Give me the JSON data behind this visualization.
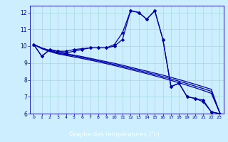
{
  "background_color": "#cceeff",
  "line_color": "#0000aa",
  "hours": [
    0,
    1,
    2,
    3,
    4,
    5,
    6,
    7,
    8,
    9,
    10,
    11,
    12,
    13,
    14,
    15,
    16,
    17,
    18,
    19,
    20,
    21,
    22,
    23
  ],
  "temp_main": [
    10.1,
    9.4,
    9.8,
    9.7,
    9.6,
    9.7,
    9.8,
    9.9,
    9.9,
    9.9,
    10.1,
    10.8,
    12.1,
    12.0,
    11.6,
    12.1,
    10.4,
    7.6,
    7.8,
    7.0,
    6.9,
    6.8,
    6.1,
    6.0
  ],
  "temp_line2": [
    10.1,
    9.4,
    9.8,
    9.7,
    9.7,
    9.8,
    9.85,
    9.9,
    9.9,
    9.9,
    10.0,
    10.4,
    12.1,
    12.0,
    11.6,
    12.1,
    10.4,
    7.6,
    7.8,
    7.0,
    6.9,
    6.7,
    6.1,
    6.0
  ],
  "trend_line1": [
    10.1,
    9.9,
    9.75,
    9.62,
    9.55,
    9.47,
    9.38,
    9.28,
    9.18,
    9.08,
    8.98,
    8.87,
    8.75,
    8.63,
    8.52,
    8.4,
    8.28,
    8.15,
    8.02,
    7.88,
    7.74,
    7.59,
    7.44,
    6.1
  ],
  "trend_line2": [
    10.1,
    9.88,
    9.72,
    9.58,
    9.5,
    9.42,
    9.33,
    9.23,
    9.13,
    9.02,
    8.91,
    8.8,
    8.68,
    8.56,
    8.44,
    8.32,
    8.19,
    8.06,
    7.92,
    7.78,
    7.63,
    7.48,
    7.32,
    6.1
  ],
  "trend_line3": [
    10.1,
    9.85,
    9.68,
    9.54,
    9.45,
    9.36,
    9.27,
    9.17,
    9.07,
    8.96,
    8.85,
    8.73,
    8.61,
    8.49,
    8.37,
    8.24,
    8.11,
    7.97,
    7.83,
    7.68,
    7.53,
    7.37,
    7.2,
    6.1
  ],
  "ylim": [
    6,
    12.4
  ],
  "xlim_min": -0.5,
  "xlim_max": 23.5,
  "yticks": [
    6,
    7,
    8,
    9,
    10,
    11,
    12
  ],
  "xticks": [
    0,
    1,
    2,
    3,
    4,
    5,
    6,
    7,
    8,
    9,
    10,
    11,
    12,
    13,
    14,
    15,
    16,
    17,
    18,
    19,
    20,
    21,
    22,
    23
  ],
  "xlabel": "Graphe des températures (°c)",
  "grid_color": "#aadddd",
  "axis_bg": "#cceeff",
  "nav_bar_color": "#0000aa",
  "nav_bar_height": 0.12
}
